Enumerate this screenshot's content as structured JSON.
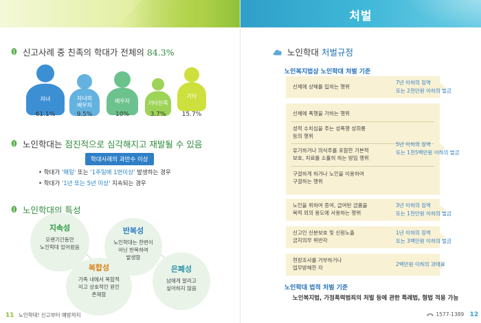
{
  "header": {
    "right_title": "처벌"
  },
  "left": {
    "section1": {
      "title_prefix": "신고사례 중 친족의 학대가 전체의 ",
      "title_highlight": "84.3%"
    },
    "persons": [
      {
        "label": "자녀",
        "pct": "61.1%",
        "color": "#3d8fd3"
      },
      {
        "label": "자녀의\n배우자",
        "pct": "9.5%",
        "color": "#64b2e0"
      },
      {
        "label": "배우자",
        "pct": "10%",
        "color": "#6cc28d"
      },
      {
        "label": "기타친족",
        "pct": "3.7%",
        "color": "#9dd357"
      },
      {
        "label": "기타",
        "pct": "15.7%",
        "color": "#cde03e"
      }
    ],
    "section2": {
      "title_prefix": "노인학대는 ",
      "title_highlight": "점진적으로 심각해지고 재발될 수 있음",
      "tag": "학대사례의 과반수 이상",
      "bullet1": {
        "a": "• 학대가 ",
        "q1": "'매일'",
        "b": " 또는 ",
        "q2": "'1주일에 1번이상'",
        "c": " 발생하는 경우"
      },
      "bullet2": {
        "a": "• 학대가 ",
        "q1": "'1년 또는 5년 이상'",
        "c": " 지속되는 경우"
      }
    },
    "section3": {
      "title": "노인학대의 특성"
    },
    "traits": [
      {
        "title": "지속성",
        "desc": "오랜기간동안\n노인학대 있어왔음"
      },
      {
        "title": "반복성",
        "desc": "노인학대는 한번이\n아닌 반복하여\n발생함"
      },
      {
        "title": "복합성",
        "desc": "가족 내에서 복합적\n이고 상호적인 원인\n존재함"
      },
      {
        "title": "은폐성",
        "desc": "남에게 알리고\n싶어하지 않음"
      }
    ],
    "footer": {
      "page": "11",
      "text": "노인학대! 신고부터 예방까지"
    }
  },
  "right": {
    "section_title_prefix": "노인학대 ",
    "section_title_highlight": "처벌규정",
    "subhead1": "노인복지법상 노인학대 처벌 기준",
    "crimes": [
      {
        "items": [
          "신체에 상해를 입히는 행위"
        ],
        "penalty": "7년 이하의 징역\n또는 2천만원 이하의 벌금"
      },
      {
        "items": [
          "신체에 폭행을 가하는 행위",
          "성적 수치심을 주는 성폭행 성희롱\n등의 행위",
          "유기하거나 의식주를 포함한 기본적\n보호, 치료를 소홀히 하는 방임 행위",
          "구걸하게 하거나 노인을 이용하여\n구걸하는 행위"
        ],
        "penalty": "5년 이하의 징역\n또는 1천5백만원 이하의 벌금"
      },
      {
        "items": [
          "노인을 위하여 증여, 급여된 금품을\n목적 외의 용도에 사용하는 행위"
        ],
        "penalty": "3년 이하의 징역\n또는 1천만원 이하의 벌금"
      },
      {
        "items": [
          "신고인 신분보호 및 신원노출\n금지의무 위반자"
        ],
        "penalty": "1년 이하의 징역\n또는 3백만원 이하의 벌금"
      },
      {
        "items": [
          "현장조사를 거부하거나\n업무방해한 자"
        ],
        "penalty": "2백만원 이하의 과태료"
      }
    ],
    "subhead2": "노인학대 법적 처벌 기준",
    "bottom_text": "노인복지법, 가정폭력범죄의 처벌 등에 관한 특례법, 형법 적용 가능",
    "footer": {
      "phone": "1577-1389",
      "page": "12"
    }
  }
}
